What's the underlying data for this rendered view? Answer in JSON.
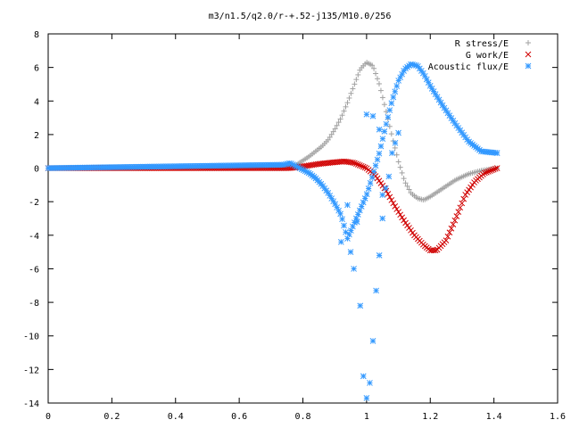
{
  "chart_data": {
    "type": "scatter",
    "title": "m3/n1.5/q2.0/r-+.52-j135/M10.0/256",
    "xlim": [
      0,
      1.6
    ],
    "ylim": [
      -14,
      8
    ],
    "xticks": [
      "0",
      "0.2",
      "0.4",
      "0.6",
      "0.8",
      "1",
      "1.2",
      "1.4",
      "1.6"
    ],
    "yticks": [
      "8",
      "6",
      "4",
      "2",
      "0",
      "-2",
      "-4",
      "-6",
      "-8",
      "-10",
      "-12",
      "-14"
    ],
    "grid": false,
    "legend_position": "top-right",
    "series": [
      {
        "name": "R stress/E",
        "marker": "+",
        "color": "#a0a0a0",
        "x_range": [
          0,
          1.41
        ],
        "points": [
          [
            0,
            0
          ],
          [
            0.74,
            0
          ],
          [
            0.76,
            0.05
          ],
          [
            0.78,
            0.2
          ],
          [
            0.8,
            0.45
          ],
          [
            0.82,
            0.7
          ],
          [
            0.84,
            1.0
          ],
          [
            0.86,
            1.3
          ],
          [
            0.88,
            1.7
          ],
          [
            0.9,
            2.3
          ],
          [
            0.92,
            3.0
          ],
          [
            0.94,
            3.9
          ],
          [
            0.96,
            4.9
          ],
          [
            0.98,
            5.9
          ],
          [
            1.0,
            6.3
          ],
          [
            1.02,
            6.1
          ],
          [
            1.04,
            5.0
          ],
          [
            1.06,
            3.5
          ],
          [
            1.08,
            1.9
          ],
          [
            1.1,
            0.4
          ],
          [
            1.12,
            -0.8
          ],
          [
            1.14,
            -1.5
          ],
          [
            1.16,
            -1.8
          ],
          [
            1.18,
            -1.9
          ],
          [
            1.2,
            -1.7
          ],
          [
            1.24,
            -1.2
          ],
          [
            1.28,
            -0.7
          ],
          [
            1.32,
            -0.35
          ],
          [
            1.36,
            -0.15
          ],
          [
            1.41,
            0
          ]
        ]
      },
      {
        "name": "G work/E",
        "marker": "x",
        "color": "#d00000",
        "x_range": [
          0,
          1.41
        ],
        "points": [
          [
            0,
            0
          ],
          [
            0.76,
            0
          ],
          [
            0.8,
            0.1
          ],
          [
            0.85,
            0.25
          ],
          [
            0.9,
            0.35
          ],
          [
            0.93,
            0.4
          ],
          [
            0.96,
            0.32
          ],
          [
            1.0,
            0.0
          ],
          [
            1.03,
            -0.5
          ],
          [
            1.06,
            -1.3
          ],
          [
            1.09,
            -2.3
          ],
          [
            1.12,
            -3.2
          ],
          [
            1.15,
            -4.0
          ],
          [
            1.18,
            -4.6
          ],
          [
            1.2,
            -4.9
          ],
          [
            1.22,
            -4.9
          ],
          [
            1.25,
            -4.3
          ],
          [
            1.28,
            -3.0
          ],
          [
            1.31,
            -1.6
          ],
          [
            1.34,
            -0.8
          ],
          [
            1.37,
            -0.3
          ],
          [
            1.41,
            0
          ]
        ]
      },
      {
        "name": "Acoustic flux/E",
        "marker": "*",
        "color": "#3399ff",
        "x_range": [
          0,
          1.41
        ],
        "points": [
          [
            0,
            0
          ],
          [
            0.74,
            0.2
          ],
          [
            0.76,
            0.3
          ],
          [
            0.78,
            0.1
          ],
          [
            0.8,
            -0.1
          ],
          [
            0.82,
            -0.3
          ],
          [
            0.84,
            -0.6
          ],
          [
            0.86,
            -1.0
          ],
          [
            0.88,
            -1.5
          ],
          [
            0.9,
            -2.1
          ],
          [
            0.92,
            -2.8
          ],
          [
            0.93,
            -3.5
          ],
          [
            0.94,
            -4.2
          ],
          [
            1.0,
            -1.6
          ],
          [
            1.02,
            -0.4
          ],
          [
            1.04,
            0.9
          ],
          [
            1.06,
            2.5
          ],
          [
            1.08,
            4.0
          ],
          [
            1.1,
            5.2
          ],
          [
            1.12,
            5.9
          ],
          [
            1.14,
            6.2
          ],
          [
            1.16,
            6.1
          ],
          [
            1.18,
            5.6
          ],
          [
            1.2,
            4.9
          ],
          [
            1.24,
            3.7
          ],
          [
            1.28,
            2.6
          ],
          [
            1.32,
            1.6
          ],
          [
            1.36,
            1.0
          ],
          [
            1.41,
            0.9
          ]
        ],
        "scatter_points": [
          [
            0.92,
            -4.4
          ],
          [
            0.94,
            -2.2
          ],
          [
            0.95,
            -5.0
          ],
          [
            0.96,
            -6.0
          ],
          [
            0.97,
            -3.2
          ],
          [
            0.98,
            -8.2
          ],
          [
            0.99,
            -12.4
          ],
          [
            1.0,
            -13.7
          ],
          [
            1.01,
            -12.8
          ],
          [
            1.02,
            -10.3
          ],
          [
            1.03,
            -7.3
          ],
          [
            1.04,
            -5.2
          ],
          [
            1.05,
            -3.0
          ],
          [
            1.05,
            -1.6
          ],
          [
            1.06,
            -1.2
          ],
          [
            1.07,
            -0.5
          ],
          [
            1.08,
            0.9
          ],
          [
            1.09,
            1.5
          ],
          [
            1.1,
            2.1
          ],
          [
            1.0,
            3.2
          ],
          [
            1.02,
            3.1
          ],
          [
            1.04,
            2.3
          ]
        ]
      }
    ]
  }
}
